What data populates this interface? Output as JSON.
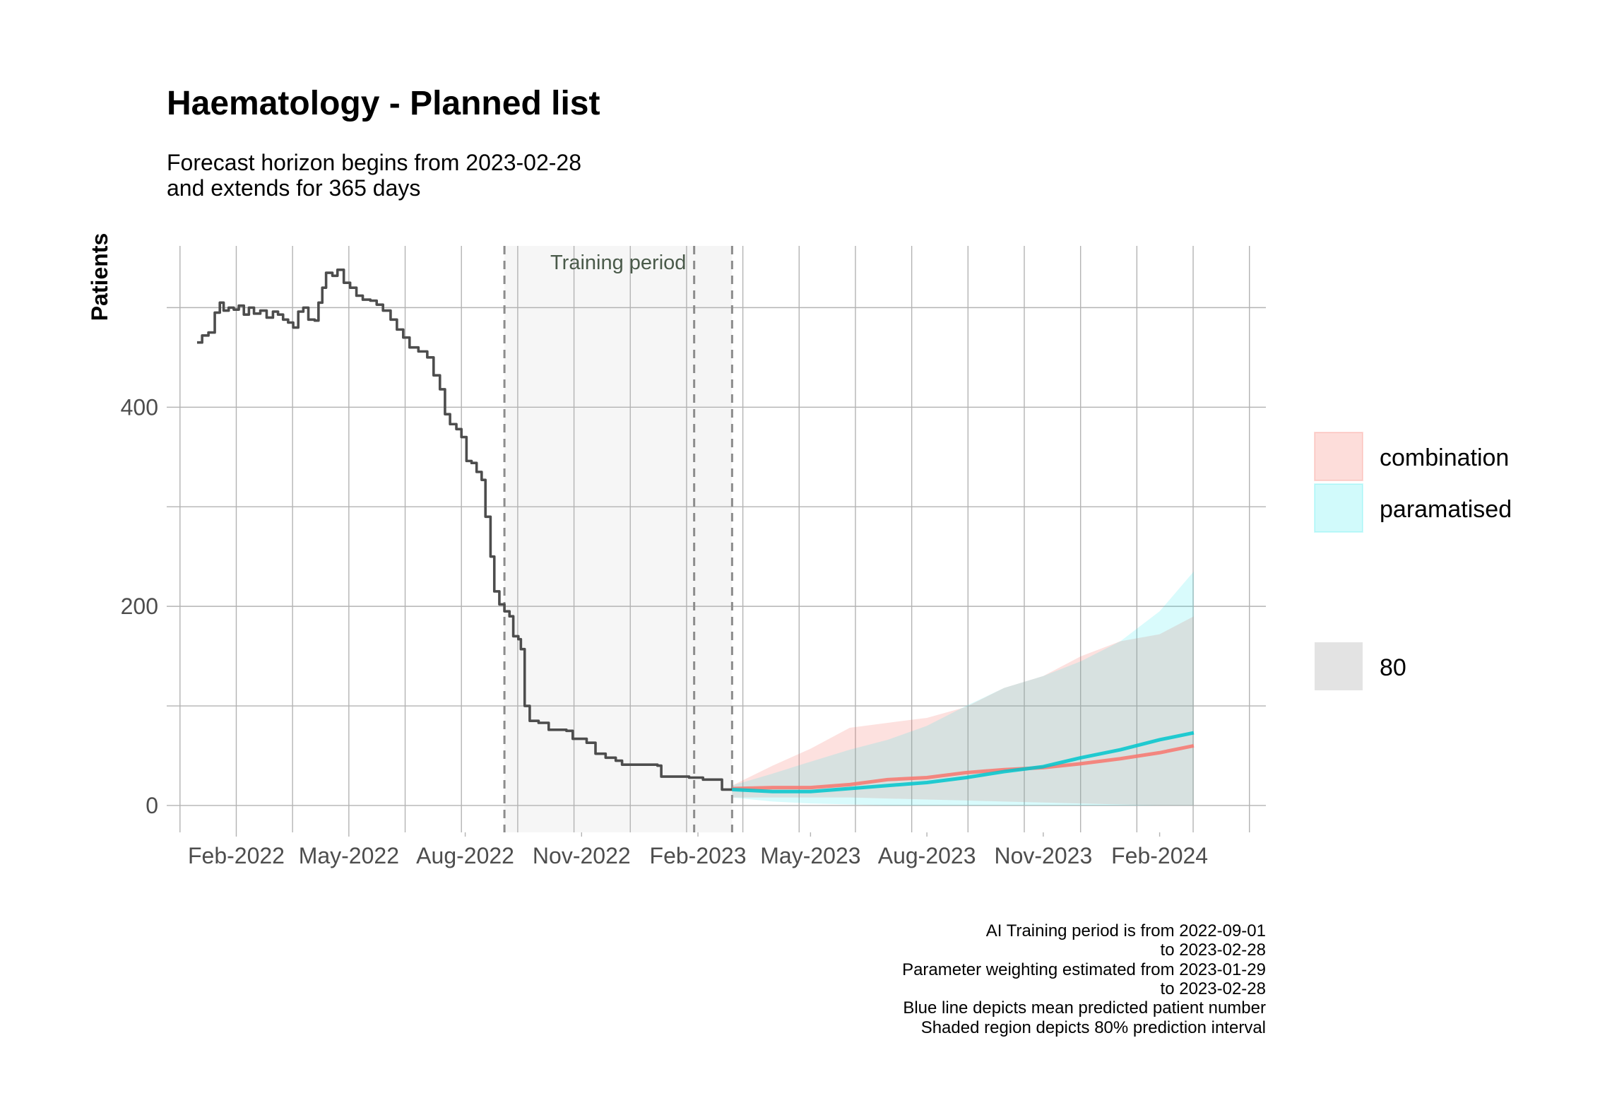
{
  "chart_data": {
    "type": "line",
    "title": "Haematology - Planned list",
    "subtitle": [
      "Forecast horizon begins from 2023-02-28",
      "and extends for 365 days"
    ],
    "xlabel": "",
    "ylabel": "Patients",
    "x_axis_type": "date",
    "xlim": [
      "2021-12-08",
      "2024-04-25"
    ],
    "ylim": [
      -27,
      562
    ],
    "x_ticks": [
      {
        "date": "2022-02-01",
        "label": "Feb-2022"
      },
      {
        "date": "2022-05-01",
        "label": "May-2022"
      },
      {
        "date": "2022-08-01",
        "label": "Aug-2022"
      },
      {
        "date": "2022-11-01",
        "label": "Nov-2022"
      },
      {
        "date": "2023-02-01",
        "label": "Feb-2023"
      },
      {
        "date": "2023-05-01",
        "label": "May-2023"
      },
      {
        "date": "2023-08-01",
        "label": "Aug-2023"
      },
      {
        "date": "2023-11-01",
        "label": "Nov-2023"
      },
      {
        "date": "2024-02-01",
        "label": "Feb-2024"
      }
    ],
    "y_ticks": [
      0,
      200,
      400
    ],
    "grid": true,
    "shaded_regions": [
      {
        "start": "2022-09-01",
        "end": "2023-02-28",
        "label": "Training period",
        "color": "#f5f5f5"
      },
      {
        "start": "2023-01-29",
        "end": "2023-02-28",
        "label": "",
        "color": "#f5f5f5"
      }
    ],
    "vertical_lines": [
      "2022-09-01",
      "2023-01-29",
      "2023-02-28"
    ],
    "legend_position": "right",
    "legend": {
      "fill_items": [
        {
          "label": "combination",
          "color": "#f8766d"
        },
        {
          "label": "paramatised",
          "color": "#00e5e8"
        }
      ],
      "interval_items": [
        {
          "label": "80",
          "color": "#d9d9d9"
        }
      ]
    },
    "series": [
      {
        "name": "",
        "color": "#4d4d4d",
        "points": [
          [
            "2022-01-01",
            465
          ],
          [
            "2022-01-05",
            472
          ],
          [
            "2022-01-10",
            475
          ],
          [
            "2022-01-15",
            495
          ],
          [
            "2022-01-19",
            505
          ],
          [
            "2022-01-22",
            497
          ],
          [
            "2022-01-26",
            500
          ],
          [
            "2022-01-30",
            498
          ],
          [
            "2022-02-03",
            502
          ],
          [
            "2022-02-07",
            493
          ],
          [
            "2022-02-11",
            500
          ],
          [
            "2022-02-15",
            494
          ],
          [
            "2022-02-20",
            497
          ],
          [
            "2022-02-25",
            490
          ],
          [
            "2022-03-02",
            496
          ],
          [
            "2022-03-06",
            493
          ],
          [
            "2022-03-10",
            488
          ],
          [
            "2022-03-14",
            485
          ],
          [
            "2022-03-18",
            480
          ],
          [
            "2022-03-22",
            496
          ],
          [
            "2022-03-26",
            500
          ],
          [
            "2022-03-30",
            488
          ],
          [
            "2022-04-04",
            487
          ],
          [
            "2022-04-07",
            505
          ],
          [
            "2022-04-10",
            520
          ],
          [
            "2022-04-13",
            535
          ],
          [
            "2022-04-18",
            532
          ],
          [
            "2022-04-22",
            538
          ],
          [
            "2022-04-27",
            525
          ],
          [
            "2022-05-02",
            520
          ],
          [
            "2022-05-07",
            512
          ],
          [
            "2022-05-12",
            508
          ],
          [
            "2022-05-18",
            507
          ],
          [
            "2022-05-23",
            503
          ],
          [
            "2022-05-28",
            497
          ],
          [
            "2022-06-03",
            488
          ],
          [
            "2022-06-08",
            478
          ],
          [
            "2022-06-13",
            470
          ],
          [
            "2022-06-18",
            460
          ],
          [
            "2022-06-25",
            456
          ],
          [
            "2022-07-02",
            450
          ],
          [
            "2022-07-07",
            432
          ],
          [
            "2022-07-12",
            418
          ],
          [
            "2022-07-16",
            393
          ],
          [
            "2022-07-20",
            383
          ],
          [
            "2022-07-25",
            378
          ],
          [
            "2022-07-29",
            370
          ],
          [
            "2022-08-02",
            346
          ],
          [
            "2022-08-06",
            344
          ],
          [
            "2022-08-10",
            335
          ],
          [
            "2022-08-14",
            327
          ],
          [
            "2022-08-17",
            290
          ],
          [
            "2022-08-21",
            250
          ],
          [
            "2022-08-24",
            215
          ],
          [
            "2022-08-28",
            202
          ],
          [
            "2022-09-01",
            195
          ],
          [
            "2022-09-05",
            190
          ],
          [
            "2022-09-08",
            170
          ],
          [
            "2022-09-12",
            167
          ],
          [
            "2022-09-14",
            157
          ],
          [
            "2022-09-17",
            100
          ],
          [
            "2022-09-21",
            85
          ],
          [
            "2022-09-28",
            83
          ],
          [
            "2022-10-06",
            76
          ],
          [
            "2022-10-20",
            75
          ],
          [
            "2022-10-25",
            67
          ],
          [
            "2022-11-05",
            63
          ],
          [
            "2022-11-12",
            52
          ],
          [
            "2022-11-20",
            48
          ],
          [
            "2022-11-28",
            45
          ],
          [
            "2022-12-03",
            41
          ],
          [
            "2022-12-31",
            40
          ],
          [
            "2023-01-03",
            29
          ],
          [
            "2023-01-25",
            28
          ],
          [
            "2023-02-05",
            26
          ],
          [
            "2023-02-15",
            26
          ],
          [
            "2023-02-20",
            16
          ],
          [
            "2023-02-28",
            16
          ]
        ]
      },
      {
        "name": "combination",
        "color": "#f8766d",
        "points": [
          [
            "2023-02-28",
            17
          ],
          [
            "2023-04-01",
            18
          ],
          [
            "2023-05-01",
            18
          ],
          [
            "2023-06-01",
            21
          ],
          [
            "2023-07-01",
            26
          ],
          [
            "2023-08-01",
            28
          ],
          [
            "2023-09-01",
            33
          ],
          [
            "2023-10-01",
            36
          ],
          [
            "2023-11-01",
            38
          ],
          [
            "2023-12-01",
            42
          ],
          [
            "2024-01-01",
            47
          ],
          [
            "2024-02-01",
            53
          ],
          [
            "2024-02-28",
            60
          ]
        ]
      },
      {
        "name": "paramatised",
        "color": "#00c5cd",
        "points": [
          [
            "2023-02-28",
            16
          ],
          [
            "2023-04-01",
            14
          ],
          [
            "2023-05-01",
            14
          ],
          [
            "2023-06-01",
            17
          ],
          [
            "2023-07-01",
            20
          ],
          [
            "2023-08-01",
            23
          ],
          [
            "2023-09-01",
            28
          ],
          [
            "2023-10-01",
            34
          ],
          [
            "2023-11-01",
            39
          ],
          [
            "2023-12-01",
            48
          ],
          [
            "2024-01-01",
            56
          ],
          [
            "2024-02-01",
            66
          ],
          [
            "2024-02-28",
            73
          ]
        ]
      }
    ],
    "intervals": [
      {
        "series": "combination",
        "level": 80,
        "color": "#f8766d",
        "points": [
          [
            "2023-02-28",
            8,
            20
          ],
          [
            "2023-04-01",
            8,
            40
          ],
          [
            "2023-05-01",
            8,
            57
          ],
          [
            "2023-06-01",
            8,
            78
          ],
          [
            "2023-07-01",
            7,
            83
          ],
          [
            "2023-08-01",
            6,
            88
          ],
          [
            "2023-09-01",
            5,
            99
          ],
          [
            "2023-10-01",
            4,
            118
          ],
          [
            "2023-11-01",
            3,
            130
          ],
          [
            "2023-12-01",
            2,
            150
          ],
          [
            "2024-01-01",
            1,
            165
          ],
          [
            "2024-02-01",
            0,
            172
          ],
          [
            "2024-02-28",
            0,
            190
          ]
        ]
      },
      {
        "series": "paramatised",
        "level": 80,
        "color": "#00e5e8",
        "points": [
          [
            "2023-02-28",
            8,
            20
          ],
          [
            "2023-04-01",
            4,
            32
          ],
          [
            "2023-05-01",
            2,
            44
          ],
          [
            "2023-06-01",
            1,
            56
          ],
          [
            "2023-07-01",
            0,
            66
          ],
          [
            "2023-08-01",
            0,
            80
          ],
          [
            "2023-09-01",
            0,
            100
          ],
          [
            "2023-10-01",
            0,
            118
          ],
          [
            "2023-11-01",
            0,
            130
          ],
          [
            "2023-12-01",
            0,
            145
          ],
          [
            "2024-01-01",
            0,
            165
          ],
          [
            "2024-02-01",
            0,
            195
          ],
          [
            "2024-02-28",
            0,
            235
          ]
        ]
      }
    ],
    "caption": [
      "AI Training period is from 2022-09-01",
      "to 2023-02-28",
      "Parameter weighting estimated from 2023-01-29",
      "to 2023-02-28",
      "Blue line depicts mean predicted patient number",
      "Shaded region depicts 80% prediction interval"
    ]
  }
}
